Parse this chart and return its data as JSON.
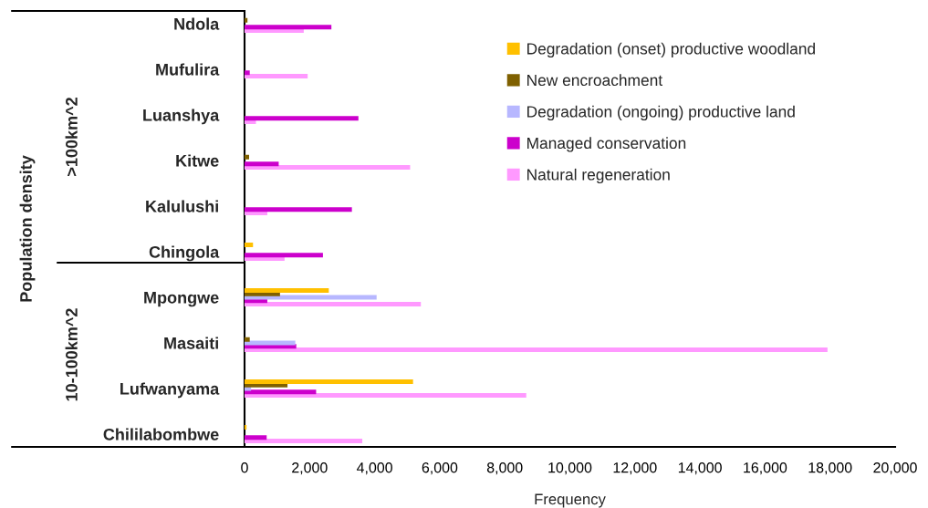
{
  "chart_data": {
    "type": "bar",
    "orientation": "horizontal",
    "xlabel": "Frequency",
    "annotations": [
      ">100km^2",
      "10-100km^2",
      "Population density"
    ],
    "categories": [
      "Ndola",
      "Mufulira",
      "Luanshya",
      "Kitwe",
      "Kalulushi",
      "Chingola",
      "Mpongwe",
      "Masaiti",
      "Lufwanyama",
      "Chililabombwe"
    ],
    "series": [
      {
        "name": "Degradation (onset) productive woodland",
        "color": "#ffc000",
        "values": [
          null,
          null,
          null,
          null,
          null,
          260,
          2590,
          null,
          5180,
          60
        ]
      },
      {
        "name": "New encroachment",
        "color": "#7f6000",
        "values": [
          90,
          null,
          null,
          140,
          null,
          null,
          1090,
          160,
          1320,
          null
        ]
      },
      {
        "name": "Degradation (ongoing) productive land",
        "color": "#b7b7ff",
        "values": [
          null,
          null,
          null,
          null,
          null,
          null,
          4060,
          1560,
          200,
          null
        ]
      },
      {
        "name": "Managed conservation",
        "color": "#cc00cc",
        "values": [
          2670,
          160,
          3500,
          1050,
          3300,
          2410,
          700,
          1590,
          2200,
          680
        ]
      },
      {
        "name": "Natural regeneration",
        "color": "#ff99ff",
        "values": [
          1820,
          1940,
          350,
          5090,
          700,
          1230,
          5420,
          17920,
          8660,
          3620
        ]
      }
    ],
    "xlim": [
      0,
      20000
    ],
    "xticks": [
      0,
      {
        "value": 2000,
        "label": "2,000"
      },
      {
        "value": 4000,
        "label": "4,000"
      },
      {
        "value": 6000,
        "label": "6,000"
      },
      {
        "value": 8000,
        "label": "8,000"
      },
      {
        "value": 10000,
        "label": "10,000"
      },
      {
        "value": 12000,
        "label": "12,000"
      },
      {
        "value": 14000,
        "label": "14,000"
      },
      {
        "value": 16000,
        "label": "16,000"
      },
      {
        "value": 18000,
        "label": "18,000"
      },
      {
        "value": 20000,
        "label": "20,000"
      }
    ],
    "legend": "top right"
  }
}
